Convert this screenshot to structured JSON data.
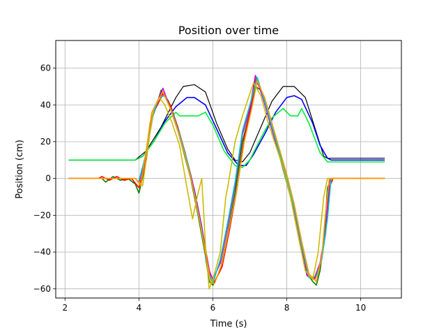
{
  "chart_data": {
    "type": "line",
    "title": "Position over time",
    "xlabel": "Time (s)",
    "ylabel": "Position (cm)",
    "xlim": [
      1.75,
      11.1
    ],
    "ylim": [
      -65,
      75
    ],
    "grid": true,
    "xticks": [
      2,
      4,
      6,
      8,
      10
    ],
    "yticks": [
      -60,
      -40,
      -20,
      0,
      20,
      40,
      60
    ],
    "series": [
      {
        "color": "#000000",
        "width": 1.2,
        "points": [
          [
            2.1,
            10
          ],
          [
            3.9,
            10
          ],
          [
            4.2,
            15
          ],
          [
            4.6,
            28
          ],
          [
            5.0,
            44
          ],
          [
            5.2,
            50
          ],
          [
            5.5,
            51
          ],
          [
            5.8,
            47
          ],
          [
            6.1,
            30
          ],
          [
            6.4,
            16
          ],
          [
            6.6,
            10
          ],
          [
            6.8,
            9
          ],
          [
            7.0,
            14
          ],
          [
            7.3,
            28
          ],
          [
            7.6,
            42
          ],
          [
            7.9,
            50
          ],
          [
            8.2,
            50
          ],
          [
            8.5,
            44
          ],
          [
            8.8,
            25
          ],
          [
            9.0,
            12
          ],
          [
            9.1,
            11
          ],
          [
            10.65,
            11
          ]
        ]
      },
      {
        "color": "#0000ff",
        "width": 1.6,
        "points": [
          [
            2.1,
            10
          ],
          [
            3.9,
            10
          ],
          [
            4.1,
            12
          ],
          [
            4.4,
            20
          ],
          [
            4.7,
            31
          ],
          [
            5.0,
            39
          ],
          [
            5.3,
            44
          ],
          [
            5.5,
            44
          ],
          [
            5.8,
            40
          ],
          [
            6.1,
            27
          ],
          [
            6.4,
            14
          ],
          [
            6.7,
            7
          ],
          [
            6.9,
            7
          ],
          [
            7.1,
            13
          ],
          [
            7.4,
            24
          ],
          [
            7.7,
            36
          ],
          [
            8.0,
            44
          ],
          [
            8.2,
            45
          ],
          [
            8.4,
            43
          ],
          [
            8.7,
            30
          ],
          [
            8.9,
            18
          ],
          [
            9.1,
            11
          ],
          [
            9.2,
            10
          ],
          [
            10.65,
            10
          ]
        ]
      },
      {
        "color": "#00ee33",
        "width": 1.6,
        "points": [
          [
            2.1,
            10
          ],
          [
            3.9,
            10
          ],
          [
            4.1,
            12
          ],
          [
            4.4,
            20
          ],
          [
            4.7,
            30
          ],
          [
            5.0,
            36
          ],
          [
            5.1,
            34
          ],
          [
            5.6,
            34
          ],
          [
            5.8,
            36
          ],
          [
            6.0,
            29
          ],
          [
            6.3,
            15
          ],
          [
            6.6,
            7
          ],
          [
            6.8,
            6
          ],
          [
            7.0,
            10
          ],
          [
            7.3,
            22
          ],
          [
            7.6,
            33
          ],
          [
            7.9,
            38
          ],
          [
            8.1,
            34
          ],
          [
            8.3,
            34
          ],
          [
            8.4,
            38
          ],
          [
            8.6,
            30
          ],
          [
            8.9,
            14
          ],
          [
            9.1,
            9
          ],
          [
            10.65,
            9
          ]
        ]
      },
      {
        "color": "#008000",
        "width": 1.6,
        "points": [
          [
            2.1,
            0
          ],
          [
            3.0,
            0
          ],
          [
            3.1,
            -2
          ],
          [
            3.3,
            1
          ],
          [
            3.5,
            -1
          ],
          [
            3.7,
            0
          ],
          [
            3.9,
            -3
          ],
          [
            4.0,
            -8
          ],
          [
            4.15,
            5
          ],
          [
            4.3,
            30
          ],
          [
            4.45,
            38
          ],
          [
            4.6,
            48
          ],
          [
            4.8,
            42
          ],
          [
            5.0,
            30
          ],
          [
            5.2,
            15
          ],
          [
            5.4,
            0
          ],
          [
            5.6,
            -20
          ],
          [
            5.8,
            -42
          ],
          [
            5.9,
            -56
          ],
          [
            6.0,
            -58
          ],
          [
            6.2,
            -50
          ],
          [
            6.4,
            -30
          ],
          [
            6.6,
            -8
          ],
          [
            6.8,
            20
          ],
          [
            7.0,
            36
          ],
          [
            7.15,
            50
          ],
          [
            7.3,
            48
          ],
          [
            7.5,
            35
          ],
          [
            7.7,
            20
          ],
          [
            7.9,
            5
          ],
          [
            8.1,
            -10
          ],
          [
            8.3,
            -30
          ],
          [
            8.5,
            -50
          ],
          [
            8.7,
            -56
          ],
          [
            8.8,
            -58
          ],
          [
            8.9,
            -50
          ],
          [
            9.0,
            -35
          ],
          [
            9.1,
            -5
          ],
          [
            9.2,
            0
          ],
          [
            10.65,
            0
          ]
        ]
      },
      {
        "color": "#ff0000",
        "width": 1.6,
        "points": [
          [
            2.1,
            0
          ],
          [
            2.9,
            0
          ],
          [
            3.0,
            1
          ],
          [
            3.2,
            -1
          ],
          [
            3.4,
            1
          ],
          [
            3.6,
            -1
          ],
          [
            3.8,
            0
          ],
          [
            4.0,
            -5
          ],
          [
            4.2,
            10
          ],
          [
            4.35,
            34
          ],
          [
            4.5,
            40
          ],
          [
            4.65,
            46
          ],
          [
            4.85,
            40
          ],
          [
            5.05,
            28
          ],
          [
            5.25,
            14
          ],
          [
            5.45,
            -2
          ],
          [
            5.65,
            -22
          ],
          [
            5.85,
            -44
          ],
          [
            5.95,
            -55
          ],
          [
            6.05,
            -56
          ],
          [
            6.25,
            -48
          ],
          [
            6.45,
            -28
          ],
          [
            6.65,
            -6
          ],
          [
            6.85,
            22
          ],
          [
            7.05,
            40
          ],
          [
            7.15,
            54
          ],
          [
            7.35,
            46
          ],
          [
            7.55,
            32
          ],
          [
            7.75,
            18
          ],
          [
            7.95,
            4
          ],
          [
            8.15,
            -12
          ],
          [
            8.35,
            -32
          ],
          [
            8.55,
            -52
          ],
          [
            8.75,
            -55
          ],
          [
            8.9,
            -48
          ],
          [
            9.05,
            -30
          ],
          [
            9.15,
            -5
          ],
          [
            9.25,
            0
          ],
          [
            10.65,
            0
          ]
        ]
      },
      {
        "color": "#cc00cc",
        "width": 1.6,
        "points": [
          [
            4.0,
            -2
          ],
          [
            4.2,
            12
          ],
          [
            4.35,
            32
          ],
          [
            4.5,
            42
          ],
          [
            4.65,
            49
          ],
          [
            4.85,
            38
          ],
          [
            5.05,
            26
          ],
          [
            5.25,
            12
          ],
          [
            5.5,
            -6
          ],
          [
            5.7,
            -26
          ],
          [
            5.9,
            -50
          ],
          [
            6.0,
            -55
          ],
          [
            6.2,
            -46
          ],
          [
            6.4,
            -26
          ],
          [
            6.6,
            -4
          ],
          [
            6.8,
            24
          ],
          [
            7.0,
            38
          ],
          [
            7.15,
            56
          ],
          [
            7.35,
            44
          ],
          [
            7.55,
            30
          ],
          [
            7.75,
            16
          ],
          [
            7.95,
            2
          ],
          [
            8.15,
            -14
          ],
          [
            8.35,
            -34
          ],
          [
            8.55,
            -53
          ],
          [
            8.75,
            -54
          ],
          [
            8.9,
            -46
          ],
          [
            9.05,
            -28
          ],
          [
            9.15,
            -2
          ],
          [
            9.2,
            0
          ]
        ]
      },
      {
        "color": "#00cccc",
        "width": 1.6,
        "points": [
          [
            4.0,
            -1
          ],
          [
            4.2,
            14
          ],
          [
            4.4,
            36
          ],
          [
            4.55,
            44
          ],
          [
            4.7,
            45
          ],
          [
            4.9,
            36
          ],
          [
            5.1,
            24
          ],
          [
            5.3,
            10
          ],
          [
            5.5,
            -8
          ],
          [
            5.7,
            -28
          ],
          [
            5.9,
            -52
          ],
          [
            6.0,
            -57
          ],
          [
            6.2,
            -44
          ],
          [
            6.4,
            -24
          ],
          [
            6.6,
            -2
          ],
          [
            6.8,
            26
          ],
          [
            7.0,
            40
          ],
          [
            7.2,
            55
          ],
          [
            7.4,
            42
          ],
          [
            7.6,
            28
          ],
          [
            7.8,
            14
          ],
          [
            8.0,
            0
          ],
          [
            8.2,
            -16
          ],
          [
            8.4,
            -36
          ],
          [
            8.6,
            -54
          ],
          [
            8.8,
            -53
          ],
          [
            8.95,
            -44
          ],
          [
            9.1,
            -22
          ],
          [
            9.2,
            0
          ]
        ]
      },
      {
        "color": "#ccbb00",
        "width": 1.6,
        "points": [
          [
            2.1,
            0
          ],
          [
            3.9,
            0
          ],
          [
            4.1,
            -4
          ],
          [
            4.25,
            18
          ],
          [
            4.4,
            38
          ],
          [
            4.55,
            44
          ],
          [
            4.7,
            40
          ],
          [
            4.9,
            30
          ],
          [
            5.1,
            18
          ],
          [
            5.3,
            -5
          ],
          [
            5.45,
            -22
          ],
          [
            5.6,
            -8
          ],
          [
            5.7,
            0
          ],
          [
            5.8,
            -36
          ],
          [
            5.9,
            -60
          ],
          [
            6.0,
            -55
          ],
          [
            6.2,
            -40
          ],
          [
            6.35,
            -10
          ],
          [
            6.4,
            -5
          ],
          [
            6.6,
            20
          ],
          [
            6.8,
            34
          ],
          [
            7.0,
            46
          ],
          [
            7.1,
            52
          ],
          [
            7.3,
            45
          ],
          [
            7.5,
            30
          ],
          [
            7.7,
            18
          ],
          [
            7.9,
            6
          ],
          [
            8.1,
            -10
          ],
          [
            8.3,
            -30
          ],
          [
            8.5,
            -50
          ],
          [
            8.7,
            -55
          ],
          [
            8.85,
            -40
          ],
          [
            9.0,
            -10
          ],
          [
            9.1,
            0
          ],
          [
            10.65,
            0
          ]
        ]
      },
      {
        "color": "#ff9900",
        "width": 1.6,
        "points": [
          [
            2.1,
            0
          ],
          [
            3.9,
            0
          ],
          [
            4.05,
            -4
          ],
          [
            4.2,
            16
          ],
          [
            4.35,
            36
          ],
          [
            4.5,
            42
          ],
          [
            4.65,
            47
          ],
          [
            4.85,
            38
          ],
          [
            5.05,
            26
          ],
          [
            5.25,
            12
          ],
          [
            5.45,
            -4
          ],
          [
            5.65,
            -24
          ],
          [
            5.85,
            -46
          ],
          [
            5.95,
            -57
          ],
          [
            6.05,
            -57
          ],
          [
            6.25,
            -46
          ],
          [
            6.45,
            -26
          ],
          [
            6.65,
            -6
          ],
          [
            6.85,
            20
          ],
          [
            7.05,
            38
          ],
          [
            7.2,
            53
          ],
          [
            7.4,
            44
          ],
          [
            7.6,
            30
          ],
          [
            7.8,
            16
          ],
          [
            8.0,
            2
          ],
          [
            8.2,
            -14
          ],
          [
            8.4,
            -34
          ],
          [
            8.6,
            -52
          ],
          [
            8.8,
            -56
          ],
          [
            8.95,
            -42
          ],
          [
            9.05,
            -18
          ],
          [
            9.15,
            0
          ],
          [
            10.65,
            0
          ]
        ]
      }
    ]
  }
}
